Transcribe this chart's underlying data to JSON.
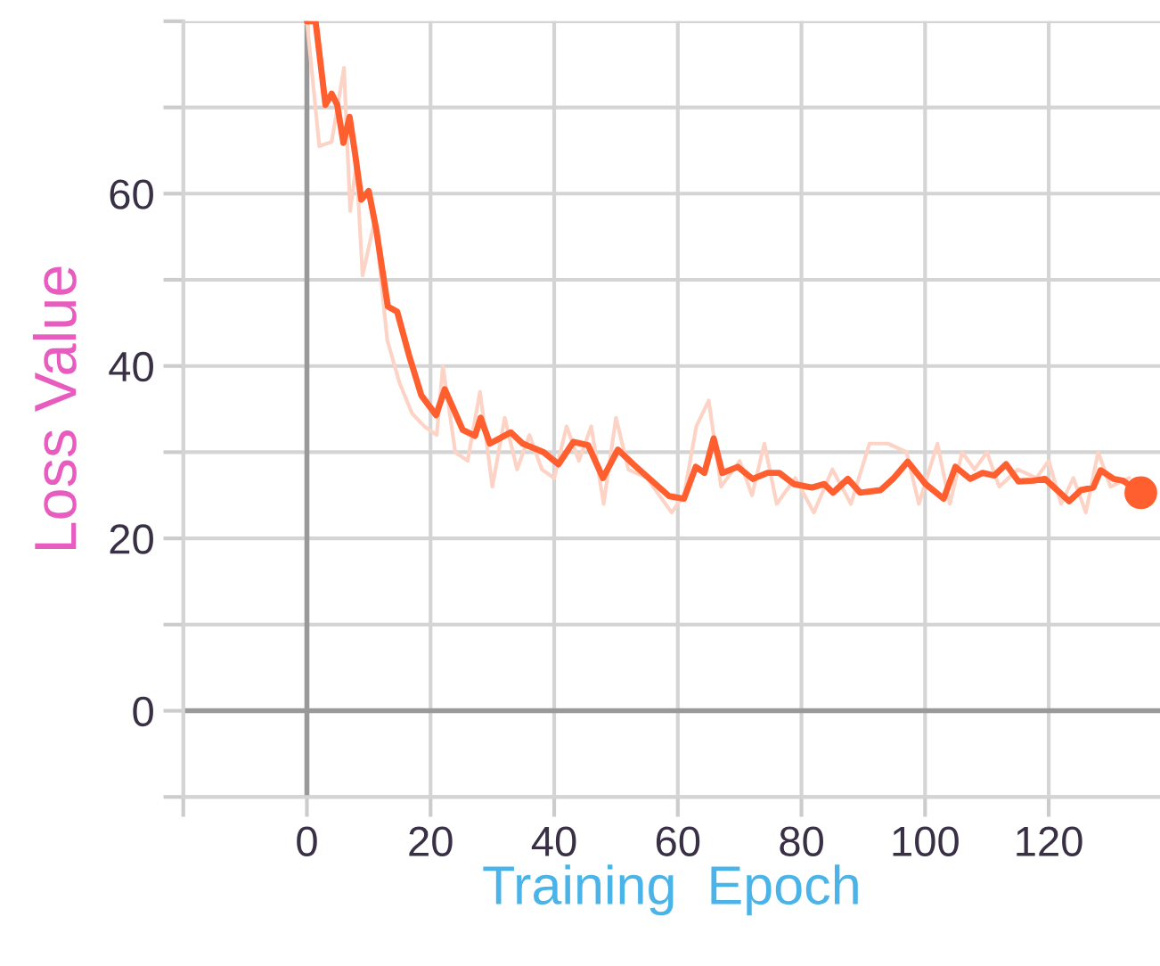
{
  "chart_data": {
    "type": "line",
    "xlabel": "Training  Epoch",
    "ylabel": "Loss Value",
    "xlim": [
      -20,
      138
    ],
    "ylim": [
      -10,
      80
    ],
    "xticks": [
      {
        "value": -20,
        "label": null
      },
      0,
      20,
      40,
      60,
      80,
      100,
      120
    ],
    "yticks": [
      {
        "value": -10,
        "label": null
      },
      0,
      {
        "value": 10,
        "label": null
      },
      20,
      {
        "value": 30,
        "label": null
      },
      40,
      {
        "value": 50,
        "label": null
      },
      60,
      {
        "value": 70,
        "label": null
      },
      {
        "value": 80,
        "label": null
      }
    ],
    "grid": true,
    "line_style": "solid",
    "marker": "none",
    "series": [
      {
        "color": "#fdd3c6",
        "x": [
          0,
          2,
          4,
          6,
          7,
          8,
          9,
          11,
          13,
          15,
          17,
          19,
          21,
          22,
          24,
          26,
          28,
          30,
          32,
          34,
          36,
          38,
          40,
          42,
          44,
          46,
          48,
          50,
          52,
          55,
          57,
          59,
          61,
          63,
          65,
          67,
          70,
          72,
          74,
          76,
          79,
          82,
          85,
          88,
          91,
          94,
          97,
          99,
          102,
          104,
          106,
          108,
          110,
          112,
          115,
          118,
          120,
          122,
          124,
          126,
          128,
          130,
          133
        ],
        "values": [
          80,
          65.5,
          66,
          74.6,
          58,
          63.5,
          50.5,
          57,
          43,
          38,
          34.5,
          33,
          32,
          40,
          30,
          29,
          37,
          26,
          34,
          28,
          32,
          28,
          27,
          33,
          29,
          33,
          24,
          34,
          28,
          27,
          25,
          23,
          25,
          33,
          36,
          26,
          29,
          25,
          31,
          24,
          27,
          23,
          28,
          24,
          31,
          31,
          30,
          24,
          31,
          24,
          30,
          28,
          30,
          26,
          28,
          27,
          29,
          24,
          27,
          23,
          30,
          26,
          27
        ]
      },
      {
        "color": "#ff5f2e",
        "x": [
          0,
          1.4,
          3.0,
          4.0,
          4.9,
          5.9,
          6.9,
          7.8,
          8.8,
          10.0,
          11.2,
          13.1,
          14.6,
          16.5,
          18.5,
          20.9,
          22.3,
          25.2,
          27.2,
          28.1,
          29.6,
          33,
          34.9,
          38.3,
          40.7,
          43.1,
          45.5,
          47.9,
          50.3,
          52.8,
          58.6,
          61,
          62.9,
          64.3,
          65.8,
          67.2,
          69.7,
          72.1,
          74.5,
          76.4,
          78.8,
          81.7,
          83.7,
          85.1,
          87.5,
          89.5,
          92.8,
          94.8,
          97.2,
          100.1,
          103,
          104.9,
          107.3,
          109.3,
          111.2,
          113.1,
          115.1,
          117.5,
          119.4,
          123.3,
          125.2,
          127.2,
          128.4,
          130.5,
          132,
          134.9
        ],
        "values": [
          80,
          80,
          70.3,
          71.6,
          70.3,
          65.9,
          68.9,
          64.6,
          59.3,
          60.3,
          55.9,
          46.9,
          46.3,
          41.3,
          36.6,
          34.3,
          37.3,
          32.6,
          31.9,
          34,
          31,
          32.3,
          31,
          30,
          28.6,
          31.2,
          30.8,
          27,
          30.3,
          28.6,
          24.9,
          24.6,
          28.3,
          27.6,
          31.6,
          27.6,
          28.3,
          26.9,
          27.6,
          27.6,
          26.3,
          25.9,
          26.3,
          25.3,
          26.9,
          25.3,
          25.6,
          26.9,
          28.9,
          26.3,
          24.6,
          28.3,
          26.9,
          27.6,
          27.3,
          28.6,
          26.6,
          26.7,
          26.9,
          24.3,
          25.6,
          25.9,
          27.9,
          26.9,
          26.7,
          25.3
        ]
      },
      {
        "type": "scatter",
        "marker": "circle",
        "color": "#ff5f2e",
        "x": [
          134.9
        ],
        "values": [
          25.3
        ]
      }
    ]
  }
}
